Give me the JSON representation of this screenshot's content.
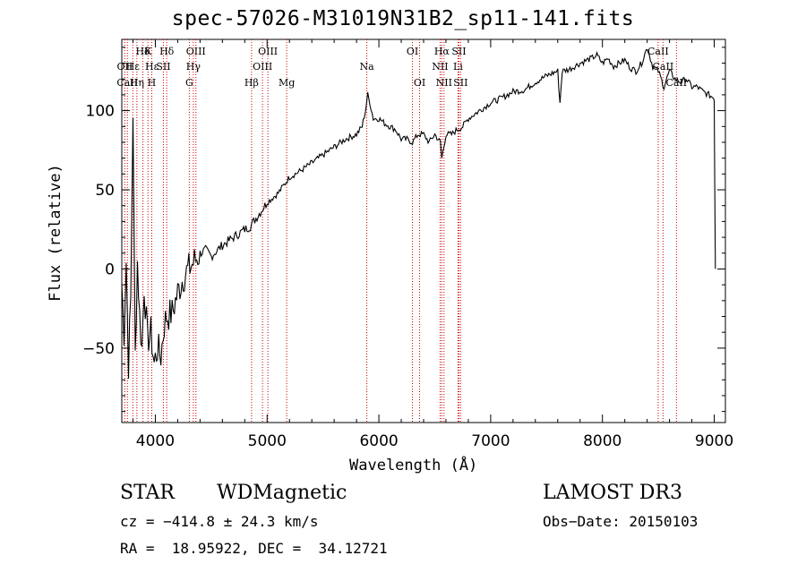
{
  "chart_data": {
    "type": "line",
    "title": "spec-57026-M31019N31B2_sp11-141.fits",
    "xlabel": "Wavelength (Å)",
    "ylabel": "Flux (relative)",
    "xlim": [
      3700,
      9100
    ],
    "ylim": [
      -97,
      145
    ],
    "xticks": [
      4000,
      5000,
      6000,
      7000,
      8000,
      9000
    ],
    "yticks": [
      -50,
      0,
      50,
      100
    ],
    "series": [
      {
        "name": "flux",
        "x": [
          3700,
          3720,
          3740,
          3760,
          3780,
          3800,
          3820,
          3840,
          3860,
          3880,
          3900,
          3930,
          3960,
          3990,
          4020,
          4050,
          4080,
          4100,
          4150,
          4200,
          4250,
          4300,
          4350,
          4400,
          4450,
          4500,
          4600,
          4700,
          4800,
          4850,
          4900,
          5000,
          5100,
          5200,
          5300,
          5400,
          5500,
          5600,
          5700,
          5800,
          5850,
          5880,
          5900,
          5920,
          5950,
          6000,
          6050,
          6100,
          6150,
          6200,
          6250,
          6300,
          6350,
          6400,
          6450,
          6500,
          6550,
          6563,
          6600,
          6650,
          6700,
          6750,
          6800,
          6900,
          7000,
          7100,
          7200,
          7300,
          7400,
          7500,
          7600,
          7620,
          7640,
          7700,
          7800,
          7900,
          7950,
          8000,
          8050,
          8100,
          8150,
          8200,
          8250,
          8300,
          8350,
          8400,
          8450,
          8500,
          8550,
          8600,
          8650,
          8700,
          8750,
          8800,
          8850,
          8900,
          8950,
          9000,
          9010
        ],
        "y": [
          -10,
          -40,
          5,
          -60,
          -20,
          100,
          -55,
          5,
          -30,
          -50,
          -10,
          -45,
          -40,
          -60,
          -50,
          -55,
          -35,
          -30,
          -28,
          -15,
          -5,
          0,
          5,
          10,
          12,
          8,
          15,
          20,
          25,
          27,
          32,
          42,
          48,
          58,
          62,
          67,
          72,
          77,
          82,
          85,
          90,
          100,
          110,
          105,
          95,
          95,
          92,
          90,
          88,
          82,
          82,
          80,
          85,
          85,
          80,
          85,
          80,
          70,
          85,
          85,
          88,
          90,
          95,
          100,
          105,
          108,
          112,
          113,
          118,
          122,
          125,
          105,
          125,
          126,
          130,
          133,
          135,
          130,
          133,
          128,
          130,
          132,
          127,
          125,
          130,
          140,
          128,
          125,
          115,
          125,
          120,
          118,
          120,
          115,
          115,
          112,
          110,
          108,
          0
        ]
      }
    ],
    "annotations": [
      {
        "label": "Hδ",
        "wavelength": 3889,
        "row": 1
      },
      {
        "label": "K",
        "wavelength": 3934,
        "row": 1
      },
      {
        "label": "Hδ",
        "wavelength": 4102,
        "row": 1
      },
      {
        "label": "OIII",
        "wavelength": 4363,
        "row": 1
      },
      {
        "label": "OIII",
        "wavelength": 5007,
        "row": 1
      },
      {
        "label": "OI",
        "wavelength": 6300,
        "row": 1
      },
      {
        "label": "Hα",
        "wavelength": 6563,
        "row": 1
      },
      {
        "label": "SII",
        "wavelength": 6716,
        "row": 1
      },
      {
        "label": "CaII",
        "wavelength": 8498,
        "row": 1
      },
      {
        "label": "OII",
        "wavelength": 3727,
        "row": 2
      },
      {
        "label": "Hε",
        "wavelength": 3799,
        "row": 2
      },
      {
        "label": "Hε",
        "wavelength": 3970,
        "row": 2
      },
      {
        "label": "SII",
        "wavelength": 4072,
        "row": 2
      },
      {
        "label": "Hγ",
        "wavelength": 4340,
        "row": 2
      },
      {
        "label": "OIII",
        "wavelength": 4959,
        "row": 2
      },
      {
        "label": "Na",
        "wavelength": 5892,
        "row": 2
      },
      {
        "label": "NII",
        "wavelength": 6548,
        "row": 2
      },
      {
        "label": "Li",
        "wavelength": 6708,
        "row": 2
      },
      {
        "label": "CaII",
        "wavelength": 8542,
        "row": 2
      },
      {
        "label": "CaII",
        "wavelength": 3750,
        "row": 3
      },
      {
        "label": "Hη",
        "wavelength": 3835,
        "row": 3
      },
      {
        "label": "H",
        "wavelength": 3968,
        "row": 3
      },
      {
        "label": "G",
        "wavelength": 4304,
        "row": 3
      },
      {
        "label": "Hβ",
        "wavelength": 4861,
        "row": 3
      },
      {
        "label": "Mg",
        "wavelength": 5175,
        "row": 3
      },
      {
        "label": "OI",
        "wavelength": 6364,
        "row": 3
      },
      {
        "label": "NII",
        "wavelength": 6583,
        "row": 3
      },
      {
        "label": "SII",
        "wavelength": 6731,
        "row": 3
      },
      {
        "label": "CaII",
        "wavelength": 8662,
        "row": 3
      }
    ],
    "line_markers": [
      3727,
      3750,
      3799,
      3835,
      3889,
      3934,
      3968,
      4072,
      4102,
      4304,
      4340,
      4363,
      4861,
      4959,
      5007,
      5175,
      5892,
      6300,
      6364,
      6548,
      6563,
      6583,
      6708,
      6716,
      6731,
      8498,
      8542,
      8662
    ]
  },
  "info": {
    "class": "STAR",
    "subclass": "WDMagnetic",
    "survey": "LAMOST DR3",
    "cz": "cz = −414.8 ± 24.3 km/s",
    "obs_date": "Obs−Date: 20150103",
    "radec": "RA =  18.95922, DEC =  34.12721"
  },
  "colors": {
    "axis": "#000000",
    "line": "#000000",
    "marker": "#cc0000"
  }
}
